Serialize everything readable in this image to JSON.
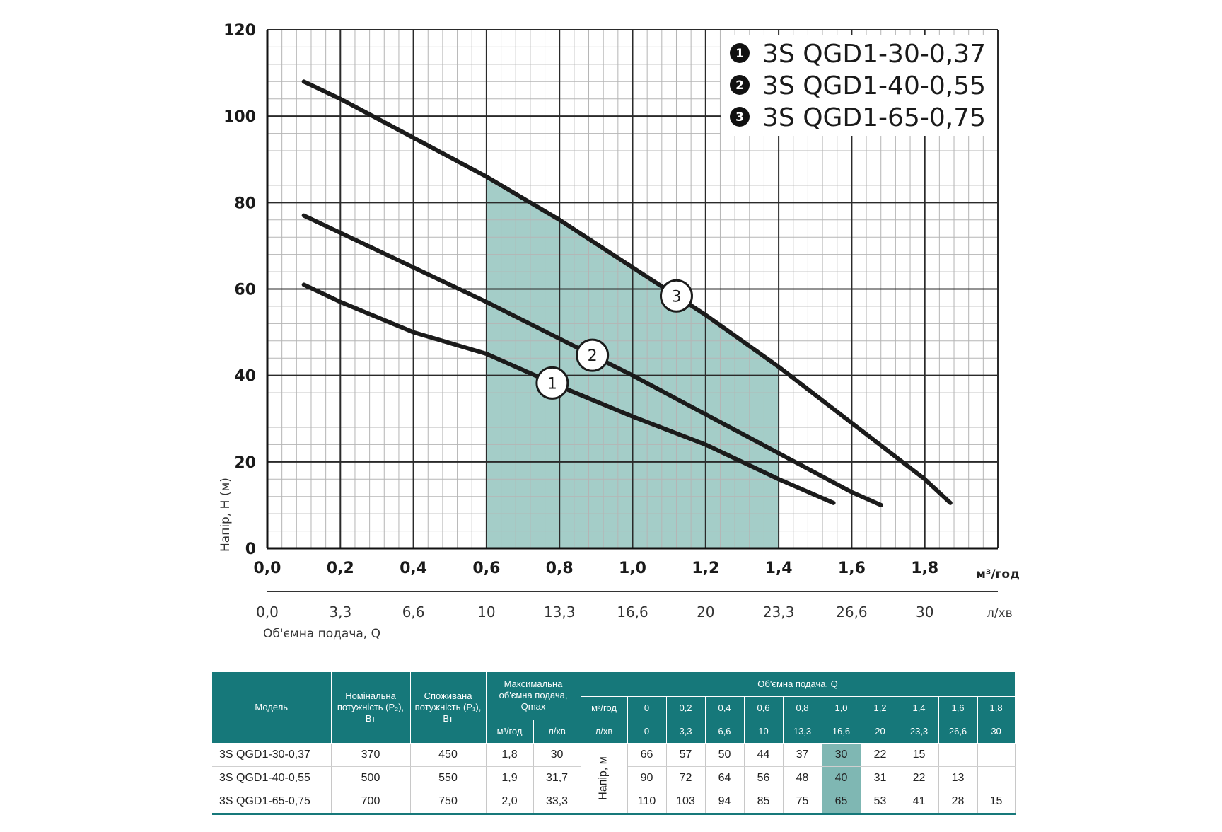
{
  "chart_data": {
    "type": "line",
    "xlabel": "Об'ємна подача, Q",
    "ylabel": "Напір, H (м)",
    "x_unit": "м³/год",
    "x2_unit": "л/хв",
    "xlim": [
      0,
      2.0
    ],
    "ylim": [
      0,
      120
    ],
    "x_ticks": [
      "0,0",
      "0,2",
      "0,4",
      "0,6",
      "0,8",
      "1,0",
      "1,2",
      "1,4",
      "1,6",
      "1,8"
    ],
    "y_ticks": [
      "0",
      "20",
      "40",
      "60",
      "80",
      "100",
      "120"
    ],
    "x2_ticks": [
      "0,0",
      "3,3",
      "6,6",
      "10",
      "13,3",
      "16,6",
      "20",
      "23,3",
      "26,6",
      "30"
    ],
    "grid": true,
    "legend": "top-right",
    "working_range": [
      0.6,
      1.4
    ],
    "series": [
      {
        "name": "3S QGD1-30-0,37",
        "marker": "1",
        "points": [
          [
            0.1,
            61
          ],
          [
            0.2,
            57
          ],
          [
            0.4,
            50
          ],
          [
            0.6,
            45
          ],
          [
            0.8,
            37.5
          ],
          [
            1.0,
            30.5
          ],
          [
            1.2,
            24
          ],
          [
            1.4,
            16
          ],
          [
            1.55,
            10.5
          ]
        ]
      },
      {
        "name": "3S QGD1-40-0,55",
        "marker": "2",
        "points": [
          [
            0.1,
            77
          ],
          [
            0.2,
            73
          ],
          [
            0.4,
            65
          ],
          [
            0.6,
            57
          ],
          [
            0.8,
            48.5
          ],
          [
            1.0,
            40
          ],
          [
            1.2,
            31
          ],
          [
            1.4,
            22
          ],
          [
            1.6,
            13
          ],
          [
            1.68,
            10
          ]
        ]
      },
      {
        "name": "3S QGD1-65-0,75",
        "marker": "3",
        "points": [
          [
            0.1,
            108
          ],
          [
            0.2,
            104
          ],
          [
            0.4,
            95
          ],
          [
            0.6,
            86
          ],
          [
            0.8,
            76
          ],
          [
            1.0,
            65
          ],
          [
            1.2,
            54
          ],
          [
            1.4,
            42
          ],
          [
            1.6,
            29
          ],
          [
            1.8,
            16
          ],
          [
            1.87,
            10.5
          ]
        ]
      }
    ]
  },
  "table": {
    "h_model": "Модель",
    "h_p2": "Номінальна потужність (P₂), Вт",
    "h_p1": "Споживана потужність (P₁), Вт",
    "h_qmax": "Максимальна об'ємна подача, Qmax",
    "h_flow": "Об'ємна подача, Q",
    "u_m3": "м³/год",
    "u_l": "л/хв",
    "u_m3_b": "м³/год",
    "u_l_b": "л/хв",
    "head_label": "Напір, м",
    "flow_m3": [
      "0",
      "0,2",
      "0,4",
      "0,6",
      "0,8",
      "1,0",
      "1,2",
      "1,4",
      "1,6",
      "1,8"
    ],
    "flow_l": [
      "0",
      "3,3",
      "6,6",
      "10",
      "13,3",
      "16,6",
      "20",
      "23,3",
      "26,6",
      "30"
    ],
    "rows": [
      {
        "model": "3S QGD1-30-0,37",
        "p2": "370",
        "p1": "450",
        "qmax_m3": "1,8",
        "qmax_l": "30",
        "heads": [
          "66",
          "57",
          "50",
          "44",
          "37",
          "30",
          "22",
          "15",
          "",
          ""
        ]
      },
      {
        "model": "3S QGD1-40-0,55",
        "p2": "500",
        "p1": "550",
        "qmax_m3": "1,9",
        "qmax_l": "31,7",
        "heads": [
          "90",
          "72",
          "64",
          "56",
          "48",
          "40",
          "31",
          "22",
          "13",
          ""
        ]
      },
      {
        "model": "3S QGD1-65-0,75",
        "p2": "700",
        "p1": "750",
        "qmax_m3": "2,0",
        "qmax_l": "33,3",
        "heads": [
          "110",
          "103",
          "94",
          "85",
          "75",
          "65",
          "53",
          "41",
          "28",
          "15"
        ]
      }
    ]
  }
}
